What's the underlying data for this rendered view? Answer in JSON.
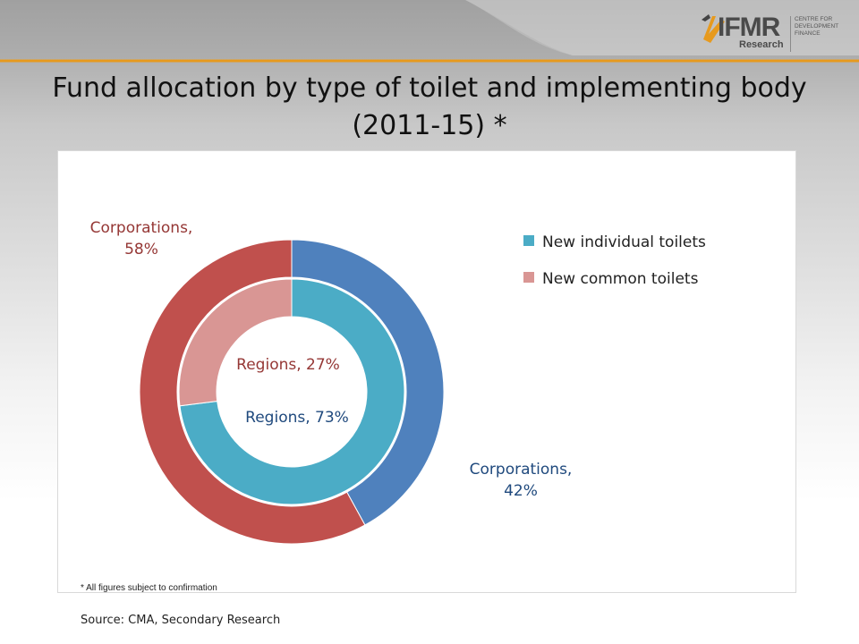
{
  "brand": {
    "name": "IFMR",
    "sub": "Research",
    "tag_lines": [
      "CENTRE FOR",
      "DEVELOPMENT",
      "FINANCE"
    ],
    "accent": "#e79a1e"
  },
  "slide": {
    "title_line1": "Fund allocation by type of toilet and implementing body",
    "title_line2": "(2011-15)  *",
    "footnote": "* All figures subject to confirmation",
    "source": "Source: CMA, Secondary Research"
  },
  "chart_data": {
    "type": "donut",
    "legend_position": "right",
    "legend": [
      {
        "label": "New individual toilets",
        "color": "#4bacc6"
      },
      {
        "label": "New common toilets",
        "color": "#d99694"
      }
    ],
    "rings": [
      {
        "name": "implementing body",
        "ring": "outer",
        "slices": [
          {
            "label": "Corporations",
            "value": 42,
            "text": "Corporations,",
            "pct": "42%",
            "color": "#4f81bd",
            "label_color": "#1f497d"
          },
          {
            "label": "Corporations",
            "value": 58,
            "text": "Corporations,",
            "pct": "58%",
            "color": "#c0504d",
            "label_color": "#953735"
          }
        ]
      },
      {
        "name": "toilet type",
        "ring": "inner",
        "slices": [
          {
            "label": "Regions",
            "value": 73,
            "text": "Regions, 73%",
            "color": "#4bacc6",
            "label_color": "#1f497d"
          },
          {
            "label": "Regions",
            "value": 27,
            "text": "Regions, 27%",
            "color": "#d99694",
            "label_color": "#953735"
          }
        ]
      }
    ]
  }
}
